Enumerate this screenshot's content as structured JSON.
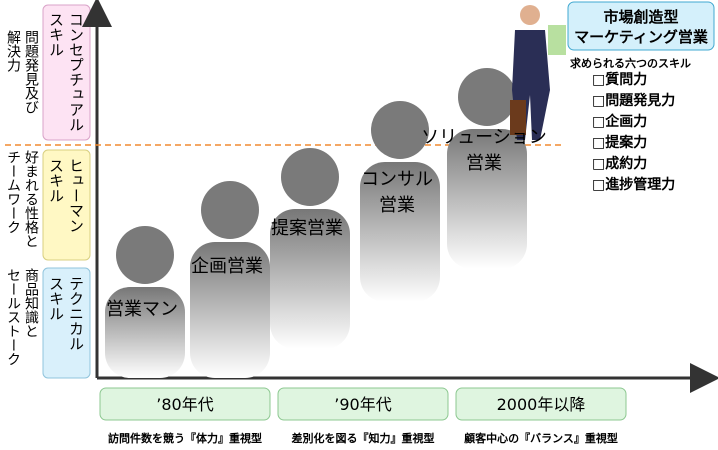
{
  "left_labels": [
    {
      "lines": [
        "問題発見及び",
        "解決力"
      ]
    },
    {
      "lines": [
        "好まれる性格と",
        "チームワーク"
      ]
    },
    {
      "lines": [
        "商品知識と",
        "セールストーク"
      ]
    }
  ],
  "skills": [
    {
      "lines": [
        "コンセプチュアル",
        "スキル"
      ]
    },
    {
      "lines": [
        "ヒューマン",
        "スキル"
      ]
    },
    {
      "lines": [
        "テクニカル",
        "スキル"
      ]
    }
  ],
  "figures": [
    {
      "lines": [
        "営業マン"
      ]
    },
    {
      "lines": [
        "企画営業"
      ]
    },
    {
      "lines": [
        "提案営業"
      ]
    },
    {
      "lines": [
        "コンサル",
        "営業"
      ]
    },
    {
      "lines": [
        "ソリューション",
        "営業"
      ]
    }
  ],
  "eras": [
    {
      "label": "’80年代",
      "caption": "訪問件数を競う『体力』重視型"
    },
    {
      "label": "’90年代",
      "caption": "差別化を図る『知力』重視型"
    },
    {
      "label": "2000年以降",
      "caption": "顧客中心の『バランス』重視型"
    }
  ],
  "goal": {
    "title": [
      "市場創造型",
      "マーケティング営業"
    ],
    "subtitle": "求められる六つのスキル",
    "items": [
      "□質問力",
      "□問題発見力",
      "□企画力",
      "□提案力",
      "□成約力",
      "□進捗管理力"
    ]
  }
}
